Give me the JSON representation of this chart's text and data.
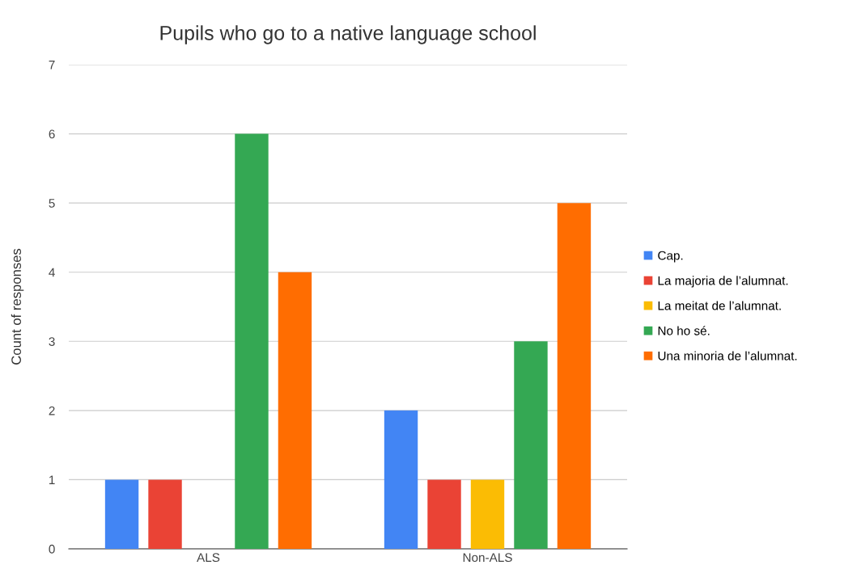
{
  "chart_data": {
    "type": "bar",
    "title": "Pupils who go to a native language school",
    "ylabel": "Count of responses",
    "categories": [
      "ALS",
      "Non-ALS"
    ],
    "series": [
      {
        "name": "Cap.",
        "color": "#4285f4",
        "values": [
          1,
          2
        ]
      },
      {
        "name": "La majoria de l’alumnat.",
        "color": "#ea4335",
        "values": [
          1,
          1
        ]
      },
      {
        "name": "La meitat de l’alumnat.",
        "color": "#fbbc04",
        "values": [
          null,
          1
        ]
      },
      {
        "name": "No ho sé.",
        "color": "#34a853",
        "values": [
          6,
          3
        ]
      },
      {
        "name": "Una minoria de l’alumnat.",
        "color": "#ff6d01",
        "values": [
          4,
          5
        ]
      }
    ],
    "ylim": [
      0,
      7
    ],
    "yticks": [
      0,
      1,
      2,
      3,
      4,
      5,
      6,
      7
    ],
    "grid": "y",
    "legend": "right"
  }
}
